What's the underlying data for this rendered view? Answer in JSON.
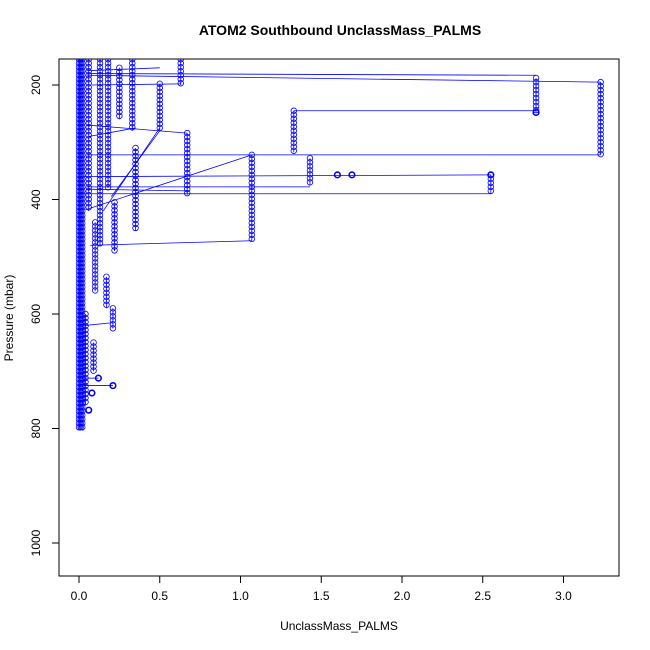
{
  "chart_data": {
    "type": "scatter",
    "title": "ATOM2 Southbound UnclassMass_PALMS",
    "xlabel": "UnclassMass_PALMS",
    "ylabel": "Pressure (mbar)",
    "xlim": [
      -0.12,
      3.4
    ],
    "ylim": [
      1060,
      155
    ],
    "y_inverted": true,
    "x_ticks": [
      0.0,
      0.5,
      1.0,
      1.5,
      2.0,
      2.5,
      3.0
    ],
    "x_tick_labels": [
      "0.0",
      "0.5",
      "1.0",
      "1.5",
      "2.0",
      "2.5",
      "3.0"
    ],
    "y_ticks": [
      200,
      400,
      600,
      800,
      1000
    ],
    "y_tick_labels": [
      "200",
      "400",
      "600",
      "800",
      "1000"
    ],
    "series_color": "#0000ff",
    "marker": "open-circle",
    "lines_connect_points": true,
    "profile_columns": [
      {
        "x": 3.23,
        "p_top": 195,
        "p_bottom": 322
      },
      {
        "x": 2.83,
        "p_top": 188,
        "p_bottom": 248
      },
      {
        "x": 2.55,
        "p_top": 357,
        "p_bottom": 390
      },
      {
        "x": 1.43,
        "p_top": 328,
        "p_bottom": 376
      },
      {
        "x": 1.33,
        "p_top": 245,
        "p_bottom": 318
      },
      {
        "x": 1.07,
        "p_top": 322,
        "p_bottom": 472
      },
      {
        "x": 0.67,
        "p_top": 284,
        "p_bottom": 392
      },
      {
        "x": 0.63,
        "p_top": 155,
        "p_bottom": 200
      },
      {
        "x": 0.5,
        "p_top": 198,
        "p_bottom": 280
      },
      {
        "x": 0.35,
        "p_top": 310,
        "p_bottom": 455
      },
      {
        "x": 0.33,
        "p_top": 155,
        "p_bottom": 280
      },
      {
        "x": 0.25,
        "p_top": 170,
        "p_bottom": 260
      },
      {
        "x": 0.22,
        "p_top": 405,
        "p_bottom": 490
      },
      {
        "x": 0.21,
        "p_top": 590,
        "p_bottom": 625
      },
      {
        "x": 0.18,
        "p_top": 155,
        "p_bottom": 380
      },
      {
        "x": 0.17,
        "p_top": 535,
        "p_bottom": 590
      },
      {
        "x": 0.13,
        "p_top": 155,
        "p_bottom": 480
      },
      {
        "x": 0.1,
        "p_top": 440,
        "p_bottom": 560
      },
      {
        "x": 0.09,
        "p_top": 650,
        "p_bottom": 700
      },
      {
        "x": 0.06,
        "p_top": 155,
        "p_bottom": 420
      },
      {
        "x": 0.04,
        "p_top": 600,
        "p_bottom": 760
      },
      {
        "x": 0.02,
        "p_top": 155,
        "p_bottom": 800
      },
      {
        "x": 0.01,
        "p_top": 155,
        "p_bottom": 800
      },
      {
        "x": 0.0,
        "p_top": 155,
        "p_bottom": 800
      }
    ],
    "isolated_points": [
      {
        "x": 1.6,
        "y": 357
      },
      {
        "x": 1.69,
        "y": 357
      },
      {
        "x": 2.55,
        "y": 357
      },
      {
        "x": 2.83,
        "y": 248
      },
      {
        "x": 0.21,
        "y": 725
      },
      {
        "x": 0.12,
        "y": 712
      },
      {
        "x": 0.08,
        "y": 738
      },
      {
        "x": 0.06,
        "y": 768
      }
    ],
    "connecting_segments": [
      {
        "x1": 0.05,
        "y1": 180,
        "x2": 2.83,
        "y2": 183
      },
      {
        "x1": 0.05,
        "y1": 183,
        "x2": 3.23,
        "y2": 195
      },
      {
        "x1": 0.05,
        "y1": 322,
        "x2": 3.23,
        "y2": 322
      },
      {
        "x1": 1.33,
        "y1": 245,
        "x2": 2.83,
        "y2": 245
      },
      {
        "x1": 0.03,
        "y1": 390,
        "x2": 2.55,
        "y2": 390
      },
      {
        "x1": 0.03,
        "y1": 360,
        "x2": 2.55,
        "y2": 357
      },
      {
        "x1": 0.05,
        "y1": 378,
        "x2": 1.43,
        "y2": 378
      },
      {
        "x1": 0.05,
        "y1": 382,
        "x2": 0.67,
        "y2": 385
      },
      {
        "x1": 0.07,
        "y1": 480,
        "x2": 1.07,
        "y2": 472
      },
      {
        "x1": 0.04,
        "y1": 418,
        "x2": 1.07,
        "y2": 322
      },
      {
        "x1": 0.05,
        "y1": 270,
        "x2": 0.67,
        "y2": 284
      },
      {
        "x1": 0.06,
        "y1": 290,
        "x2": 0.35,
        "y2": 275
      },
      {
        "x1": 0.08,
        "y1": 200,
        "x2": 0.63,
        "y2": 198
      },
      {
        "x1": 0.05,
        "y1": 175,
        "x2": 0.5,
        "y2": 170
      },
      {
        "x1": 0.04,
        "y1": 620,
        "x2": 0.21,
        "y2": 615
      },
      {
        "x1": 0.03,
        "y1": 725,
        "x2": 0.21,
        "y2": 725
      },
      {
        "x1": 0.03,
        "y1": 712,
        "x2": 0.12,
        "y2": 712
      },
      {
        "x1": 0.15,
        "y1": 420,
        "x2": 0.5,
        "y2": 275
      },
      {
        "x1": 0.2,
        "y1": 395,
        "x2": 0.5,
        "y2": 280
      }
    ]
  }
}
